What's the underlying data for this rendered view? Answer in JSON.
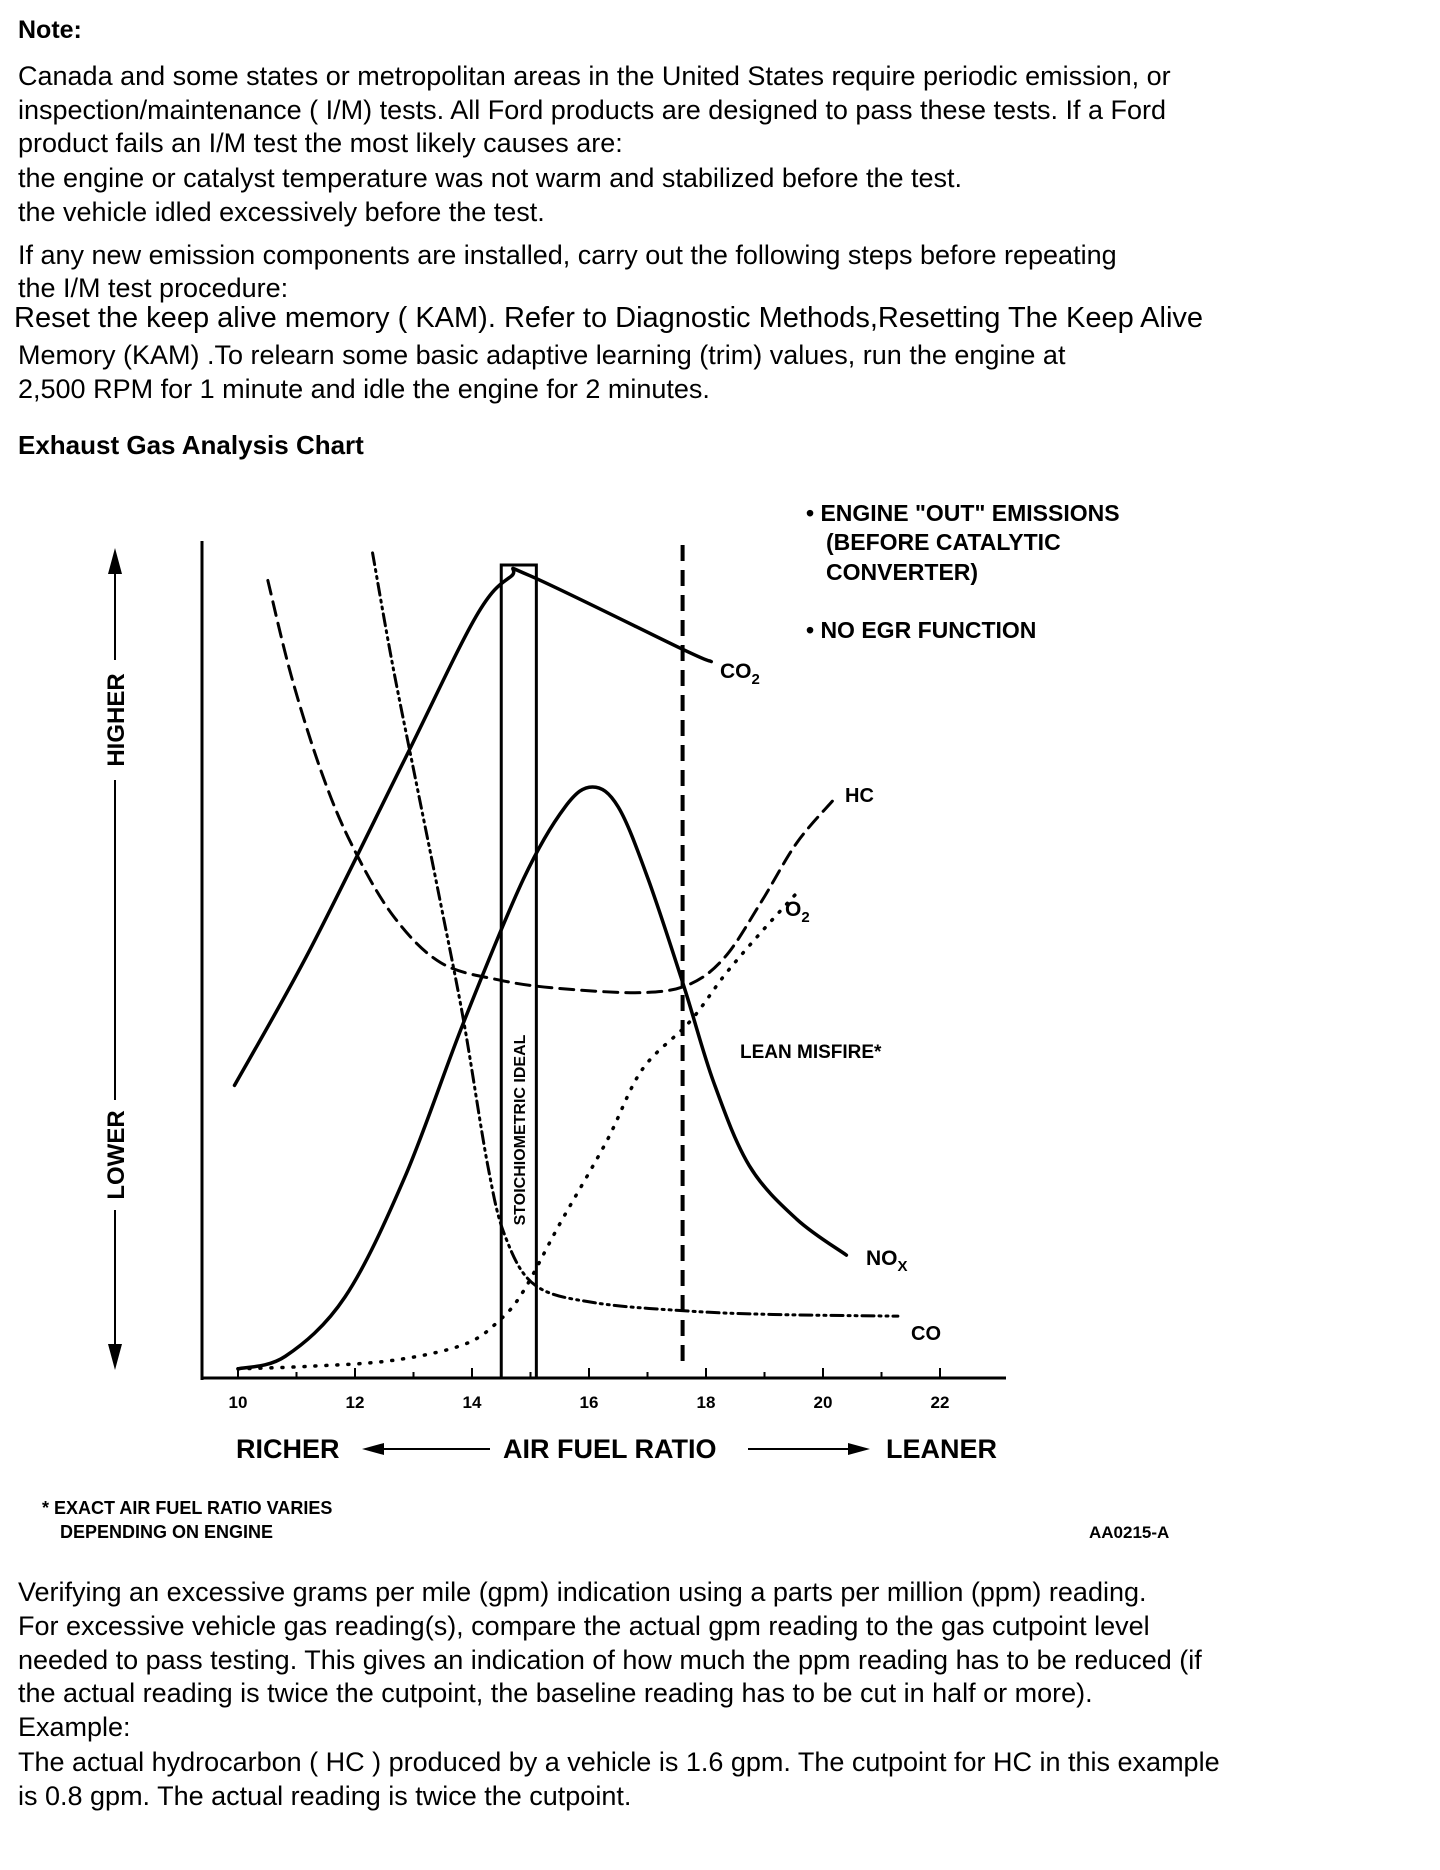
{
  "note": {
    "heading": "Note:",
    "lines": [
      "Canada and some states or metropolitan areas in the United States require periodic emission, or",
      "inspection/maintenance ( I/M) tests. All Ford products are designed to pass these tests. If a Ford",
      "product fails an I/M test the most likely causes are:",
      "the engine or catalyst temperature was not warm and stabilized before the test.",
      "the vehicle idled excessively before the test."
    ],
    "para2": [
      "If any new emission components are installed, carry out the following steps before repeating",
      "the I/M test procedure:"
    ],
    "para3": [
      "Reset the keep alive memory ( KAM). Refer to Diagnostic Methods,Resetting The Keep Alive",
      "Memory (KAM) .To relearn some basic adaptive learning (trim) values, run the engine at",
      "2,500 RPM for 1 minute and  idle the engine for 2 minutes."
    ]
  },
  "chart_heading": "Exhaust Gas Analysis Chart",
  "chart_data": {
    "type": "line",
    "title": "Exhaust Gas Analysis Chart",
    "xlabel": "AIR FUEL RATIO",
    "xlabel_left": "RICHER",
    "xlabel_right": "LEANER",
    "ylabel_high": "HIGHER",
    "ylabel_low": "LOWER",
    "xlim": [
      9.4,
      23
    ],
    "ylim": [
      0,
      100
    ],
    "xticks": [
      "10",
      "12",
      "14",
      "16",
      "18",
      "20",
      "22"
    ],
    "notes": [
      "• ENGINE \"OUT\" EMISSIONS",
      "(BEFORE CATALYTIC",
      "CONVERTER)",
      "• NO EGR FUNCTION"
    ],
    "stoichiometric_label": "STOICHIOMETRIC IDEAL",
    "stoichiometric_range": [
      14.5,
      15.1
    ],
    "lean_misfire_x": 17.6,
    "lean_misfire_label": "LEAN MISFIRE*",
    "series": [
      {
        "name": "CO2",
        "label": "CO",
        "sub": "2",
        "style": "solid",
        "points": [
          [
            9.94,
            35
          ],
          [
            11.22,
            51.1
          ],
          [
            12.85,
            74
          ],
          [
            14.07,
            91.1
          ],
          [
            14.67,
            95.9
          ],
          [
            14.98,
            96
          ],
          [
            17.62,
            87.1
          ],
          [
            18.09,
            85.7
          ]
        ]
      },
      {
        "name": "NOx",
        "label": "NO",
        "sub": "X",
        "style": "solid",
        "points": [
          [
            10,
            1.1
          ],
          [
            10.81,
            2.6
          ],
          [
            11.83,
            9.7
          ],
          [
            12.85,
            24
          ],
          [
            13.86,
            42.6
          ],
          [
            14.88,
            59.7
          ],
          [
            15.59,
            68.3
          ],
          [
            16.06,
            70.7
          ],
          [
            16.5,
            68.3
          ],
          [
            17.01,
            59.7
          ],
          [
            17.62,
            46.9
          ],
          [
            18.13,
            35.4
          ],
          [
            18.74,
            25.4
          ],
          [
            19.55,
            19
          ],
          [
            20.4,
            14.7
          ]
        ]
      },
      {
        "name": "HC",
        "label": "HC",
        "sub": "",
        "style": "dashed",
        "points": [
          [
            10.51,
            95.4
          ],
          [
            10.91,
            84
          ],
          [
            11.42,
            72.6
          ],
          [
            11.93,
            64
          ],
          [
            12.64,
            55.4
          ],
          [
            13.46,
            49.7
          ],
          [
            14.47,
            47.6
          ],
          [
            15.49,
            46.6
          ],
          [
            16.91,
            46.1
          ],
          [
            17.72,
            47.1
          ],
          [
            18.33,
            50.4
          ],
          [
            18.94,
            56.9
          ],
          [
            19.55,
            64
          ],
          [
            20.16,
            69
          ]
        ]
      },
      {
        "name": "CO",
        "label": "CO",
        "sub": "",
        "style": "dashdot",
        "points": [
          [
            12.3,
            98.7
          ],
          [
            12.64,
            85.4
          ],
          [
            13.05,
            71.1
          ],
          [
            13.46,
            56.9
          ],
          [
            13.86,
            42.6
          ],
          [
            14.27,
            25.4
          ],
          [
            14.57,
            16.9
          ],
          [
            15.08,
            11.1
          ],
          [
            16.1,
            9
          ],
          [
            17.72,
            8
          ],
          [
            19.15,
            7.6
          ],
          [
            21.28,
            7.4
          ]
        ]
      },
      {
        "name": "O2",
        "label": "O",
        "sub": "2",
        "style": "dotted",
        "points": [
          [
            10,
            1.1
          ],
          [
            11.22,
            1.4
          ],
          [
            12.64,
            2.1
          ],
          [
            13.86,
            4
          ],
          [
            14.47,
            6.9
          ],
          [
            14.88,
            10.4
          ],
          [
            15.49,
            18.3
          ],
          [
            16.3,
            28.3
          ],
          [
            16.91,
            36.9
          ],
          [
            17.72,
            42.6
          ],
          [
            18.33,
            48.3
          ],
          [
            18.94,
            53.3
          ],
          [
            19.55,
            58
          ]
        ]
      }
    ],
    "footnote": [
      "* EXACT AIR FUEL RATIO VARIES",
      "DEPENDING ON ENGINE"
    ],
    "figure_id": "AA0215-A"
  },
  "bottom": {
    "lines": [
      "Verifying an excessive grams per mile (gpm) indication using a parts per million (ppm) reading.",
      "For excessive vehicle gas reading(s), compare the actual gpm reading to the gas cutpoint level",
      "needed to pass testing. This gives an indication of how much the ppm reading has to be reduced (if",
      "the actual reading is twice the cutpoint, the baseline reading has to be cut in half or more).",
      "Example:",
      "The actual hydrocarbon ( HC ) produced by a vehicle is 1.6 gpm. The cutpoint for HC in this example",
      "is 0.8 gpm. The actual reading is twice the cutpoint."
    ]
  }
}
